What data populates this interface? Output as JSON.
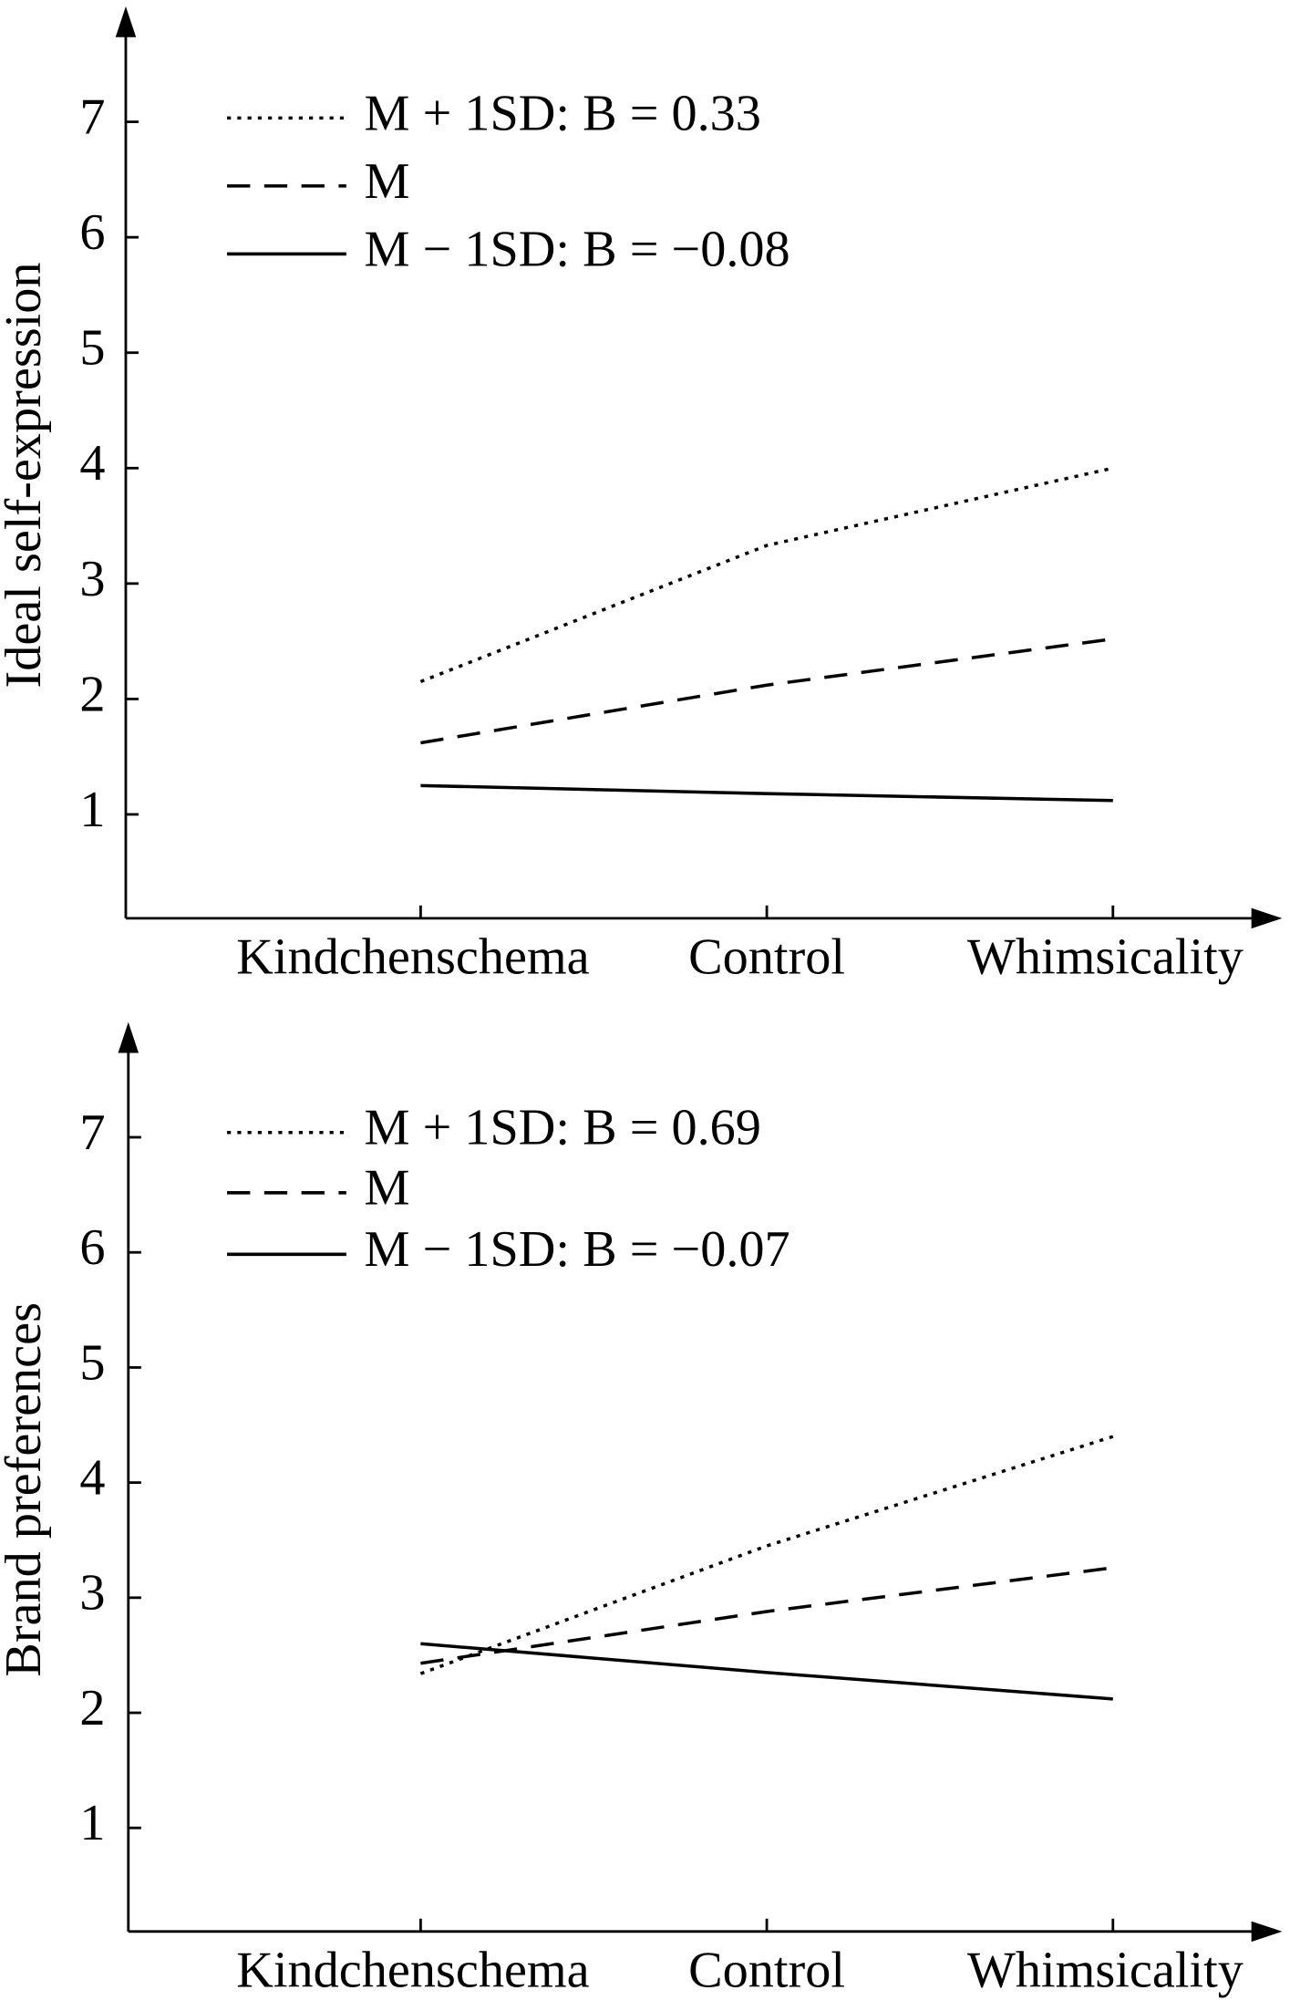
{
  "chart_data": [
    {
      "type": "line",
      "y_label": "Ideal self-expression",
      "categories": [
        "Kindchenschema",
        "Control",
        "Whimsicality"
      ],
      "ylim": [
        0.1,
        8
      ],
      "yticks": [
        1,
        2,
        3,
        4,
        5,
        6,
        7
      ],
      "series": [
        {
          "name": "M + 1SD: B = 0.33",
          "color": "#000000",
          "line_style": "dotted",
          "values": [
            2.15,
            3.33,
            4.0
          ]
        },
        {
          "name": "M",
          "color": "#000000",
          "line_style": "dashed",
          "values": [
            1.62,
            2.12,
            2.52
          ]
        },
        {
          "name": "M − 1SD: B = −0.08",
          "color": "#000000",
          "line_style": "solid",
          "values": [
            1.25,
            1.18,
            1.12
          ]
        }
      ]
    },
    {
      "type": "line",
      "y_label": "Brand preferences",
      "categories": [
        "Kindchenschema",
        "Control",
        "Whimsicality"
      ],
      "ylim": [
        0.1,
        8
      ],
      "yticks": [
        1,
        2,
        3,
        4,
        5,
        6,
        7
      ],
      "series": [
        {
          "name": "M + 1SD: B = 0.69",
          "color": "#000000",
          "line_style": "dotted",
          "values": [
            2.34,
            3.45,
            4.4
          ]
        },
        {
          "name": "M",
          "color": "#000000",
          "line_style": "dashed",
          "values": [
            2.43,
            2.88,
            3.26
          ]
        },
        {
          "name": "M − 1SD: B = −0.07",
          "color": "#000000",
          "line_style": "solid",
          "values": [
            2.6,
            2.35,
            2.12
          ]
        }
      ]
    }
  ]
}
